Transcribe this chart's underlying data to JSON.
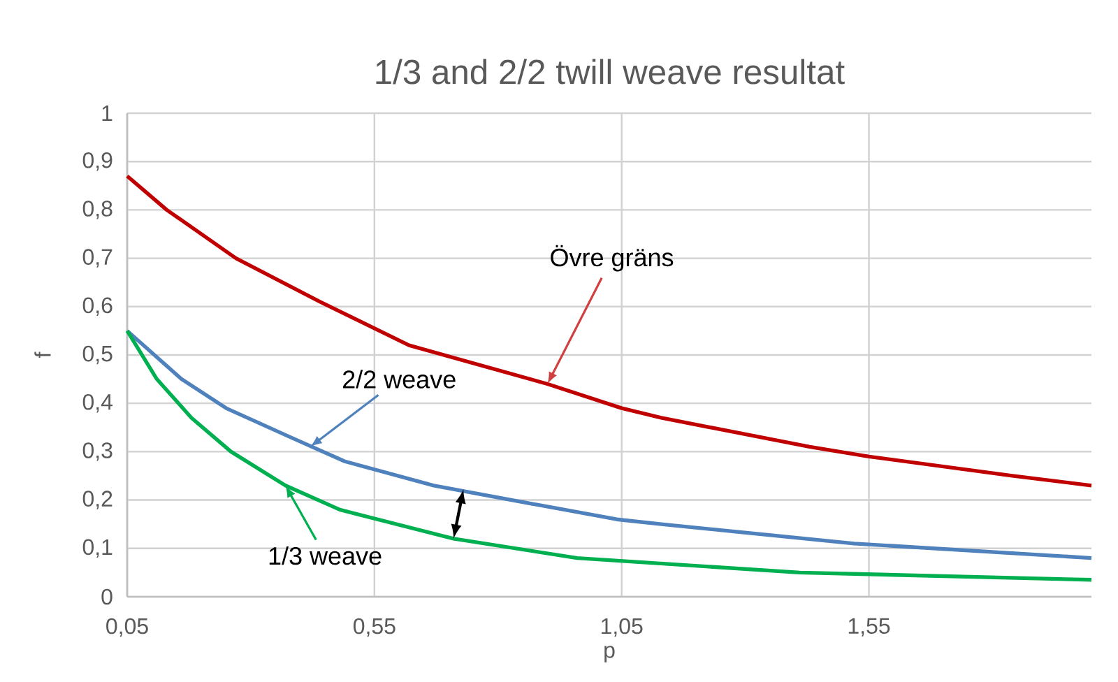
{
  "chart_data": {
    "type": "line",
    "title": "1/3 and 2/2 twill weave resultat",
    "xlabel": "p",
    "ylabel": "f",
    "xlim": [
      0.05,
      2.0
    ],
    "ylim": [
      0,
      1
    ],
    "xticks": [
      {
        "value": 0.05,
        "label": "0,05"
      },
      {
        "value": 0.55,
        "label": "0,55"
      },
      {
        "value": 1.05,
        "label": "1,05"
      },
      {
        "value": 1.55,
        "label": "1,55"
      }
    ],
    "yticks": [
      0,
      {
        "value": 0.1,
        "label": "0,1"
      },
      {
        "value": 0.2,
        "label": "0,2"
      },
      {
        "value": 0.3,
        "label": "0,3"
      },
      {
        "value": 0.4,
        "label": "0,4"
      },
      {
        "value": 0.5,
        "label": "0,5"
      },
      {
        "value": 0.6,
        "label": "0,6"
      },
      {
        "value": 0.7,
        "label": "0,7"
      },
      {
        "value": 0.8,
        "label": "0,8"
      },
      {
        "value": 0.9,
        "label": "0,9"
      },
      1
    ],
    "grid": true,
    "legend": false,
    "marker": "none",
    "line_style": "solid",
    "series": [
      {
        "color": "#c00000",
        "x": [
          0.05,
          0.13,
          0.27,
          0.44,
          0.62,
          0.9,
          1.05,
          1.13,
          1.43,
          1.55,
          1.84,
          2.0
        ],
        "values": [
          0.87,
          0.8,
          0.7,
          0.61,
          0.52,
          0.44,
          0.39,
          0.37,
          0.31,
          0.29,
          0.25,
          0.23
        ]
      },
      {
        "color": "#4f81bd",
        "x": [
          0.05,
          0.16,
          0.25,
          0.38,
          0.49,
          0.67,
          0.88,
          1.04,
          1.13,
          1.52,
          2.0
        ],
        "values": [
          0.55,
          0.45,
          0.39,
          0.33,
          0.28,
          0.23,
          0.19,
          0.16,
          0.15,
          0.11,
          0.08
        ]
      },
      {
        "color": "#00b050",
        "x": [
          0.05,
          0.11,
          0.18,
          0.26,
          0.37,
          0.48,
          0.71,
          0.96,
          1.41,
          2.0
        ],
        "values": [
          0.55,
          0.45,
          0.37,
          0.3,
          0.23,
          0.18,
          0.12,
          0.08,
          0.05,
          0.035
        ]
      }
    ],
    "annotations": [
      {
        "text": "Övre gräns",
        "x": 0.9,
        "y": 0.44
      },
      {
        "text": "2/2 weave",
        "x": 0.42,
        "y": 0.31
      },
      {
        "text": "1/3 weave",
        "x": 0.37,
        "y": 0.23
      }
    ]
  }
}
